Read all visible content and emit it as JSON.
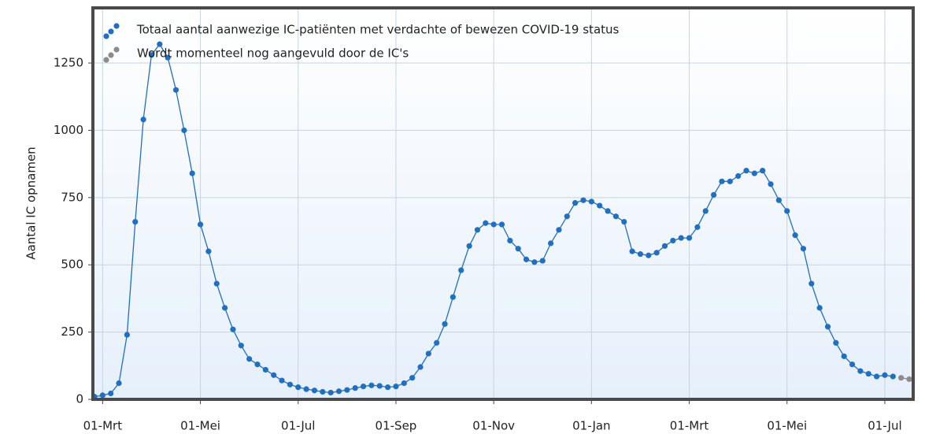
{
  "chart_data": {
    "type": "line",
    "y_label": "Aantal IC opnamen",
    "categories": [
      "26-Feb",
      "01-Mrt",
      "06-Mrt",
      "11-Mrt",
      "16-Mrt",
      "21-Mrt",
      "26-Mrt",
      "01-Apr",
      "06-Apr",
      "11-Apr",
      "16-Apr",
      "21-Apr",
      "26-Apr",
      "01-Mei",
      "06-Mei",
      "11-Mei",
      "16-Mei",
      "21-Mei",
      "26-Mei",
      "01-Jun",
      "06-Jun",
      "11-Jun",
      "16-Jun",
      "21-Jun",
      "26-Jun",
      "01-Jul",
      "06-Jul",
      "11-Jul",
      "16-Jul",
      "21-Jul",
      "26-Jul",
      "01-Aug",
      "06-Aug",
      "11-Aug",
      "16-Aug",
      "21-Aug",
      "26-Aug",
      "01-Sep",
      "06-Sep",
      "11-Sep",
      "16-Sep",
      "21-Sep",
      "26-Sep",
      "01-Okt",
      "06-Okt",
      "11-Okt",
      "16-Okt",
      "21-Okt",
      "26-Okt",
      "01-Nov",
      "06-Nov",
      "11-Nov",
      "16-Nov",
      "21-Nov",
      "26-Nov",
      "01-Dec",
      "06-Dec",
      "11-Dec",
      "16-Dec",
      "21-Dec",
      "26-Dec",
      "01-Jan",
      "06-Jan",
      "11-Jan",
      "16-Jan",
      "21-Jan",
      "26-Jan",
      "01-Feb",
      "06-Feb",
      "11-Feb",
      "16-Feb",
      "21-Feb",
      "26-Feb",
      "01-Mrt",
      "06-Mrt",
      "11-Mrt",
      "16-Mrt",
      "21-Mrt",
      "26-Mrt",
      "01-Apr",
      "06-Apr",
      "11-Apr",
      "16-Apr",
      "21-Apr",
      "26-Apr",
      "01-Mei",
      "06-Mei",
      "11-Mei",
      "16-Mei",
      "21-Mei",
      "26-Mei",
      "01-Jun",
      "06-Jun",
      "11-Jun",
      "16-Jun",
      "21-Jun",
      "26-Jun",
      "01-Jul",
      "06-Jul",
      "11-Jul",
      "16-Jul"
    ],
    "series": [
      {
        "name": "Totaal aantal aanwezige IC-patiënten met verdachte of bewezen COVID-19 status",
        "color": "#1f6fc5",
        "values": [
          10,
          15,
          22,
          60,
          240,
          660,
          1040,
          1280,
          1320,
          1270,
          1150,
          1000,
          840,
          650,
          550,
          430,
          340,
          260,
          200,
          150,
          130,
          110,
          90,
          70,
          55,
          45,
          38,
          33,
          28,
          25,
          30,
          35,
          42,
          48,
          52,
          50,
          45,
          48,
          60,
          80,
          120,
          170,
          210,
          280,
          380,
          480,
          570,
          630,
          655,
          650,
          650,
          590,
          560,
          520,
          510,
          515,
          580,
          630,
          680,
          730,
          740,
          735,
          720,
          700,
          680,
          660,
          550,
          540,
          535,
          545,
          570,
          590,
          600,
          600,
          640,
          700,
          760,
          810,
          810,
          830,
          850,
          840,
          850,
          800,
          740,
          700,
          610,
          560,
          430,
          340,
          270,
          210,
          160,
          130,
          105,
          95,
          85,
          90,
          85,
          null,
          null
        ]
      },
      {
        "name": "Wordt momenteel nog aangevuld door de IC's",
        "color": "#8c8c8c",
        "values": [
          null,
          null,
          null,
          null,
          null,
          null,
          null,
          null,
          null,
          null,
          null,
          null,
          null,
          null,
          null,
          null,
          null,
          null,
          null,
          null,
          null,
          null,
          null,
          null,
          null,
          null,
          null,
          null,
          null,
          null,
          null,
          null,
          null,
          null,
          null,
          null,
          null,
          null,
          null,
          null,
          null,
          null,
          null,
          null,
          null,
          null,
          null,
          null,
          null,
          null,
          null,
          null,
          null,
          null,
          null,
          null,
          null,
          null,
          null,
          null,
          null,
          null,
          null,
          null,
          null,
          null,
          null,
          null,
          null,
          null,
          null,
          null,
          null,
          null,
          null,
          null,
          null,
          null,
          null,
          null,
          null,
          null,
          null,
          null,
          null,
          null,
          null,
          null,
          null,
          null,
          null,
          null,
          null,
          null,
          null,
          null,
          null,
          null,
          null,
          80,
          75
        ]
      }
    ],
    "xticks": [
      "01-Mrt",
      "01-Mei",
      "01-Jul",
      "01-Sep",
      "01-Nov",
      "01-Jan",
      "01-Mrt",
      "01-Mei",
      "01-Jul"
    ],
    "ylim": [
      0,
      1455
    ],
    "yticks": [
      0,
      250,
      500,
      750,
      1000,
      1250
    ],
    "grid": true,
    "legend": "top-left"
  }
}
